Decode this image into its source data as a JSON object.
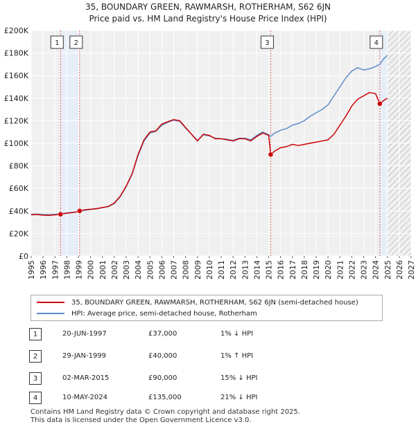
{
  "title": {
    "line1": "35, BOUNDARY GREEN, RAWMARSH, ROTHERHAM, S62 6JN",
    "line2": "Price paid vs. HM Land Registry's House Price Index (HPI)"
  },
  "legend": {
    "property_label": "35, BOUNDARY GREEN, RAWMARSH, ROTHERHAM, S62 6JN (semi-detached house)",
    "hpi_label": "HPI: Average price, semi-detached house, Rotherham"
  },
  "transactions": [
    {
      "id": "1",
      "date": "20-JUN-1997",
      "price": "£37,000",
      "hpi": "1% ↓ HPI"
    },
    {
      "id": "2",
      "date": "29-JAN-1999",
      "price": "£40,000",
      "hpi": "1% ↑ HPI"
    },
    {
      "id": "3",
      "date": "02-MAR-2015",
      "price": "£90,000",
      "hpi": "15% ↓ HPI"
    },
    {
      "id": "4",
      "date": "10-MAY-2024",
      "price": "£135,000",
      "hpi": "21% ↓ HPI"
    }
  ],
  "footer": {
    "line1": "Contains HM Land Registry data © Crown copyright and database right 2025.",
    "line2": "This data is licensed under the Open Government Licence v3.0."
  },
  "colors": {
    "property": "#cc0000",
    "hpi": "#5b8cc8",
    "vline": "#e06060",
    "band": "#e8eef8",
    "grid": "#ffffff",
    "plot_bg": "#f0f0f0"
  },
  "chart_data": {
    "type": "line",
    "xlim": [
      1995,
      2027
    ],
    "ylim": [
      0,
      200000
    ],
    "x_ticks": [
      1995,
      1996,
      1997,
      1998,
      1999,
      2000,
      2001,
      2002,
      2003,
      2004,
      2005,
      2006,
      2007,
      2008,
      2009,
      2010,
      2011,
      2012,
      2013,
      2014,
      2015,
      2016,
      2017,
      2018,
      2019,
      2020,
      2021,
      2022,
      2023,
      2024,
      2025,
      2026,
      2027
    ],
    "y_ticks": [
      {
        "value": 0,
        "label": "£0"
      },
      {
        "value": 20000,
        "label": "£20K"
      },
      {
        "value": 40000,
        "label": "£40K"
      },
      {
        "value": 60000,
        "label": "£60K"
      },
      {
        "value": 80000,
        "label": "£80K"
      },
      {
        "value": 100000,
        "label": "£100K"
      },
      {
        "value": 120000,
        "label": "£120K"
      },
      {
        "value": 140000,
        "label": "£140K"
      },
      {
        "value": 160000,
        "label": "£160K"
      },
      {
        "value": 180000,
        "label": "£180K"
      },
      {
        "value": 200000,
        "label": "£200K"
      }
    ],
    "hatch_from": 2025.0,
    "series": [
      {
        "name": "35, BOUNDARY GREEN, RAWMARSH, ROTHERHAM, S62 6JN (semi-detached house)",
        "color": "#cc0000",
        "x": [
          1995.0,
          1995.5,
          1996.0,
          1996.5,
          1997.0,
          1997.47,
          1997.7,
          1998.0,
          1998.5,
          1999.0,
          1999.08,
          1999.5,
          2000.0,
          2000.5,
          2001.0,
          2001.5,
          2002.0,
          2002.5,
          2003.0,
          2003.5,
          2004.0,
          2004.5,
          2005.0,
          2005.5,
          2006.0,
          2006.5,
          2007.0,
          2007.5,
          2008.0,
          2008.5,
          2009.0,
          2009.5,
          2010.0,
          2010.5,
          2011.0,
          2011.5,
          2012.0,
          2012.5,
          2013.0,
          2013.5,
          2014.0,
          2014.5,
          2015.0,
          2015.17,
          2015.5,
          2016.0,
          2016.5,
          2017.0,
          2017.5,
          2018.0,
          2018.5,
          2019.0,
          2019.5,
          2020.0,
          2020.5,
          2021.0,
          2021.5,
          2022.0,
          2022.5,
          2023.0,
          2023.5,
          2024.0,
          2024.36,
          2024.7,
          2025.0
        ],
        "y": [
          36500,
          36800,
          36200,
          36000,
          36500,
          37000,
          37500,
          38000,
          38500,
          39500,
          40000,
          41000,
          41500,
          42000,
          43000,
          44000,
          47000,
          53000,
          62000,
          73000,
          90000,
          103000,
          110000,
          111000,
          117000,
          119000,
          121000,
          120000,
          114000,
          108000,
          102000,
          108000,
          107000,
          104000,
          104000,
          103000,
          102000,
          104000,
          104000,
          102000,
          106000,
          109000,
          107000,
          90000,
          93000,
          96000,
          97000,
          99000,
          98000,
          99000,
          100000,
          101000,
          102000,
          103000,
          108000,
          116000,
          124000,
          133000,
          139000,
          142000,
          145000,
          144000,
          135000,
          138000,
          140000
        ]
      },
      {
        "name": "HPI: Average price, semi-detached house, Rotherham",
        "color": "#5b8cc8",
        "x": [
          1995.0,
          1995.5,
          1996.0,
          1996.5,
          1997.0,
          1997.47,
          1997.7,
          1998.0,
          1998.5,
          1999.0,
          1999.08,
          1999.5,
          2000.0,
          2000.5,
          2001.0,
          2001.5,
          2002.0,
          2002.5,
          2003.0,
          2003.5,
          2004.0,
          2004.5,
          2005.0,
          2005.5,
          2006.0,
          2006.5,
          2007.0,
          2007.5,
          2008.0,
          2008.5,
          2009.0,
          2009.5,
          2010.0,
          2010.5,
          2011.0,
          2011.5,
          2012.0,
          2012.5,
          2013.0,
          2013.5,
          2014.0,
          2014.5,
          2015.0,
          2015.17,
          2015.5,
          2016.0,
          2016.5,
          2017.0,
          2017.5,
          2018.0,
          2018.5,
          2019.0,
          2019.5,
          2020.0,
          2020.5,
          2021.0,
          2021.5,
          2022.0,
          2022.5,
          2023.0,
          2023.5,
          2024.0,
          2024.36,
          2024.7,
          2025.0
        ],
        "y": [
          37000,
          37200,
          36800,
          36600,
          37000,
          37400,
          37800,
          38300,
          38800,
          39400,
          39600,
          40500,
          41200,
          41800,
          42800,
          43800,
          46500,
          52500,
          61500,
          72500,
          89000,
          102000,
          109000,
          110500,
          116000,
          118500,
          120500,
          119500,
          113500,
          108000,
          102500,
          107500,
          106500,
          104500,
          104000,
          103500,
          102500,
          104500,
          104500,
          103000,
          107000,
          110000,
          107500,
          106000,
          109000,
          111500,
          113000,
          116000,
          117500,
          120000,
          124000,
          127000,
          130000,
          134000,
          142000,
          150000,
          158000,
          164000,
          167000,
          165000,
          166000,
          168000,
          170000,
          175000,
          178000
        ]
      }
    ],
    "markers": [
      {
        "label": "1",
        "x": 1997.47,
        "y": 37000
      },
      {
        "label": "2",
        "x": 1999.08,
        "y": 40000
      },
      {
        "label": "3",
        "x": 2015.17,
        "y": 90000
      },
      {
        "label": "4",
        "x": 2024.36,
        "y": 135000
      }
    ]
  }
}
